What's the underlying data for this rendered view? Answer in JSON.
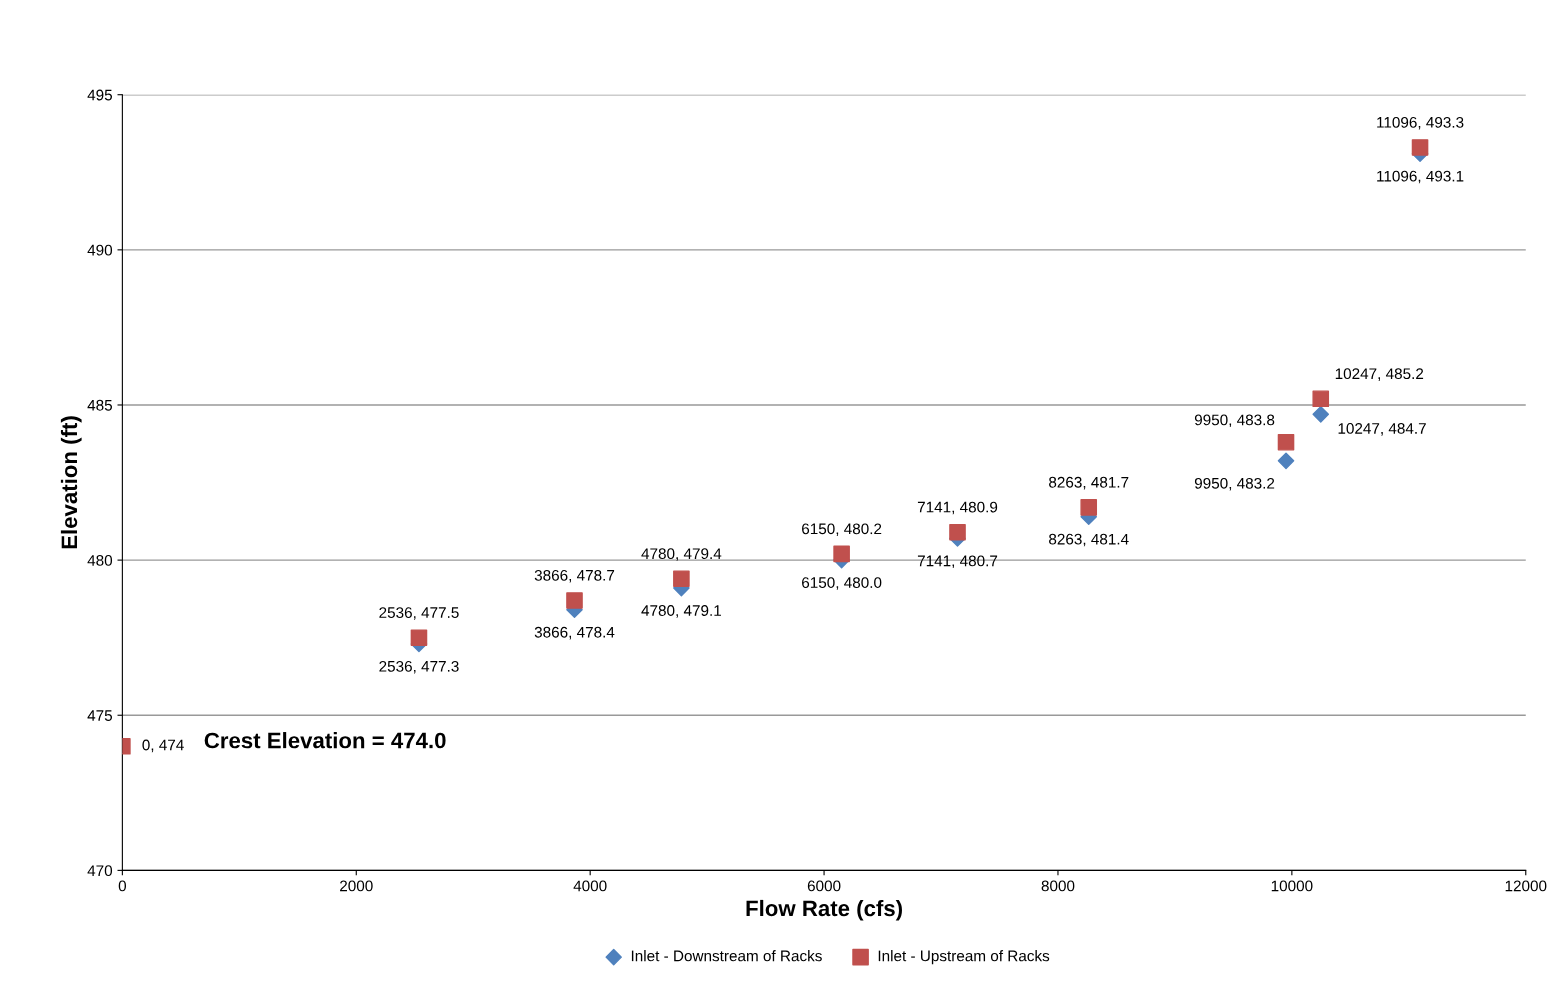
{
  "chart_data": {
    "type": "scatter",
    "xlabel": "Flow Rate (cfs)",
    "ylabel": "Elevation (ft)",
    "xlim": [
      0,
      12000
    ],
    "xticks": [
      0,
      2000,
      4000,
      6000,
      8000,
      10000,
      12000
    ],
    "ylim": [
      470,
      495
    ],
    "yticks": [
      470,
      475,
      480,
      485,
      490,
      495
    ],
    "grid": "y",
    "legend": "bottom",
    "annotations": [
      "Crest Elevation = 474.0"
    ],
    "series": [
      {
        "name": "Inlet - Downstream of Racks",
        "color": "#4f81bd",
        "marker": "diamond",
        "x": [
          2536,
          3866,
          4780,
          6150,
          7141,
          8263,
          9950,
          10247,
          11096
        ],
        "values": [
          477.3,
          478.4,
          479.1,
          480.0,
          480.7,
          481.4,
          483.2,
          484.7,
          493.1
        ],
        "value_labels": [
          "2536, 477.3",
          "3866, 478.4",
          "4780, 479.1",
          "6150, 480.0",
          "7141, 480.7",
          "8263, 481.4",
          "9950, 483.2",
          "10247, 484.7",
          "11096, 493.1"
        ]
      },
      {
        "name": "Inlet - Upstream of Racks",
        "color": "#c0504d",
        "marker": "square",
        "x": [
          0,
          2536,
          3866,
          4780,
          6150,
          7141,
          8263,
          9950,
          10247,
          11096
        ],
        "values": [
          474,
          477.5,
          478.7,
          479.4,
          480.2,
          480.9,
          481.7,
          483.8,
          485.2,
          493.3
        ],
        "value_labels": [
          "0, 474",
          "2536, 477.5",
          "3866, 478.7",
          "4780, 479.4",
          "6150, 480.2",
          "7141, 480.9",
          "8263, 481.7",
          "9950, 483.8",
          "10247, 485.2",
          "11096, 493.3"
        ]
      }
    ]
  }
}
